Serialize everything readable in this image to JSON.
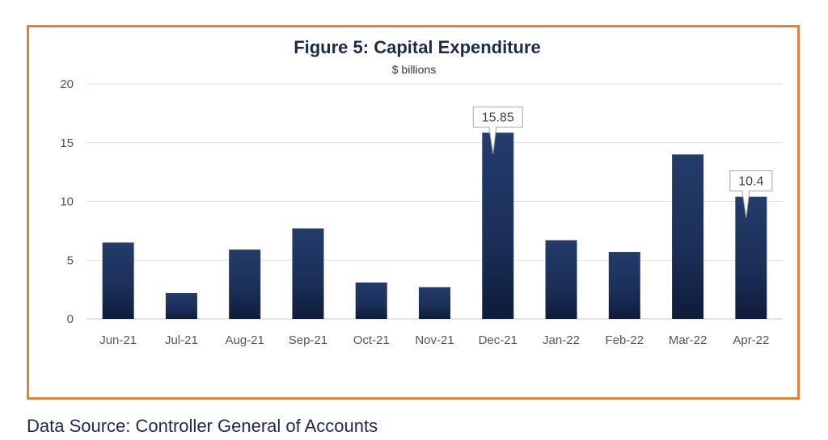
{
  "chart_data": {
    "type": "bar",
    "title": "Figure 5: Capital Expenditure",
    "subtitle": "$ billions",
    "categories": [
      "Jun-21",
      "Jul-21",
      "Aug-21",
      "Sep-21",
      "Oct-21",
      "Nov-21",
      "Dec-21",
      "Jan-22",
      "Feb-22",
      "Mar-22",
      "Apr-22"
    ],
    "values": [
      6.5,
      2.2,
      5.9,
      7.7,
      3.1,
      2.7,
      15.85,
      6.7,
      5.7,
      14.0,
      10.4
    ],
    "annotations": [
      {
        "category": "Dec-21",
        "label": "15.85"
      },
      {
        "category": "Apr-22",
        "label": "10.4"
      }
    ],
    "ylim": [
      0,
      20
    ],
    "yticks": [
      0,
      5,
      10,
      15,
      20
    ],
    "xlabel": "",
    "ylabel": "",
    "grid": true,
    "legend": "none",
    "bar_color": "#1d3461",
    "border_color": "#d9843f"
  },
  "footer": {
    "source": "Data Source: Controller General of Accounts"
  }
}
